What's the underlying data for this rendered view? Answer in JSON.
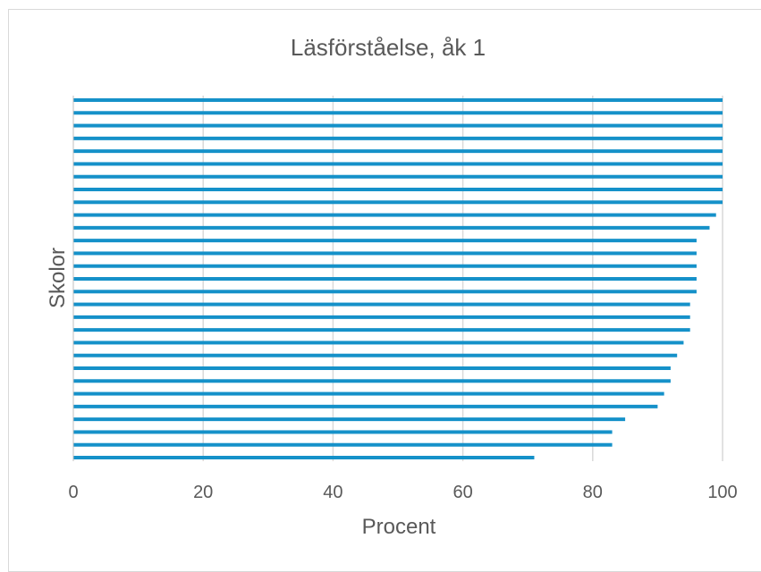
{
  "chart_data": {
    "type": "bar",
    "orientation": "horizontal",
    "title": "Läsförståelse, åk 1",
    "xlabel": "Procent",
    "ylabel": "Skolor",
    "xlim": [
      0,
      100
    ],
    "xticks": [
      "0",
      "20",
      "40",
      "60",
      "80",
      "100"
    ],
    "grid": "vertical",
    "legend": "none",
    "bar_color": "#1591c9",
    "values": [
      100,
      100,
      100,
      100,
      100,
      100,
      100,
      100,
      100,
      99,
      98,
      96,
      96,
      96,
      96,
      96,
      95,
      95,
      95,
      94,
      93,
      92,
      92,
      91,
      90,
      85,
      83,
      83,
      71
    ]
  }
}
